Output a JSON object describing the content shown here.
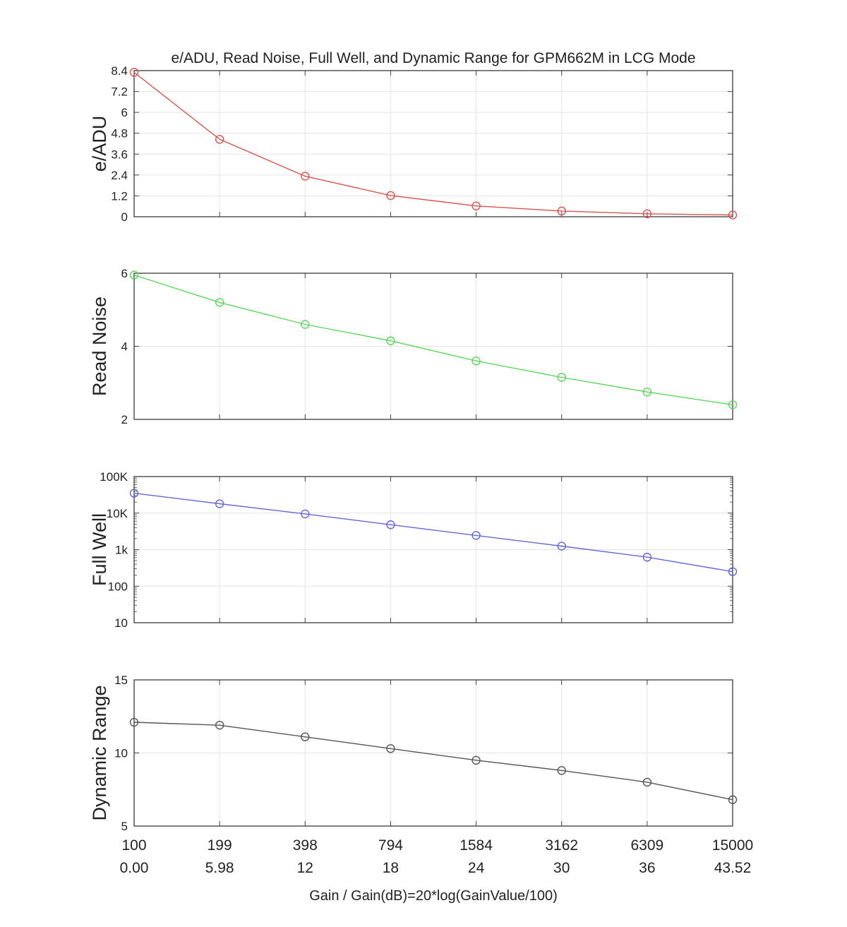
{
  "chart_data": {
    "type": "line",
    "title": "e/ADU, Read Noise, Full Well, and Dynamic Range for GPM662M in LCG Mode",
    "xlabel": "Gain / Gain(dB)=20*log(GainValue/100)",
    "categories": [
      "100",
      "199",
      "398",
      "794",
      "1584",
      "3162",
      "6309",
      "15000"
    ],
    "categories_db": [
      "0.00",
      "5.98",
      "12",
      "18",
      "24",
      "30",
      "36",
      "43.52"
    ],
    "grid": true,
    "panels": [
      {
        "ylabel": "e/ADU",
        "color": "#d9534f",
        "scale": "linear",
        "ylim": [
          0,
          8.4
        ],
        "yticks": [
          0,
          1.2,
          2.4,
          3.6,
          4.8,
          6,
          7.2,
          8.4
        ],
        "ytick_labels": [
          "0",
          "1.2",
          "2.4",
          "3.6",
          "4.8",
          "6",
          "7.2",
          "8.4"
        ],
        "values": [
          8.3,
          4.45,
          2.33,
          1.22,
          0.62,
          0.33,
          0.17,
          0.1
        ]
      },
      {
        "ylabel": "Read Noise",
        "color": "#5cd65c",
        "scale": "linear",
        "ylim": [
          2,
          6
        ],
        "yticks": [
          2,
          4,
          6
        ],
        "ytick_labels": [
          "2",
          "4",
          "6"
        ],
        "values": [
          5.95,
          5.2,
          4.6,
          4.15,
          3.6,
          3.15,
          2.75,
          2.4
        ]
      },
      {
        "ylabel": "Full Well",
        "color": "#6666d9",
        "scale": "log",
        "ylim": [
          10,
          100000
        ],
        "yticks": [
          10,
          100,
          1000,
          10000,
          100000
        ],
        "ytick_labels": [
          "10",
          "100",
          "1k",
          "10K",
          "100K"
        ],
        "values": [
          35000,
          18000,
          9500,
          4800,
          2450,
          1250,
          620,
          250
        ]
      },
      {
        "ylabel": "Dynamic Range",
        "color": "#555555",
        "scale": "linear",
        "ylim": [
          5,
          15
        ],
        "yticks": [
          5,
          10,
          15
        ],
        "ytick_labels": [
          "5",
          "10",
          "15"
        ],
        "values": [
          12.1,
          11.9,
          11.1,
          10.3,
          9.5,
          8.8,
          8.0,
          6.8
        ]
      }
    ]
  }
}
